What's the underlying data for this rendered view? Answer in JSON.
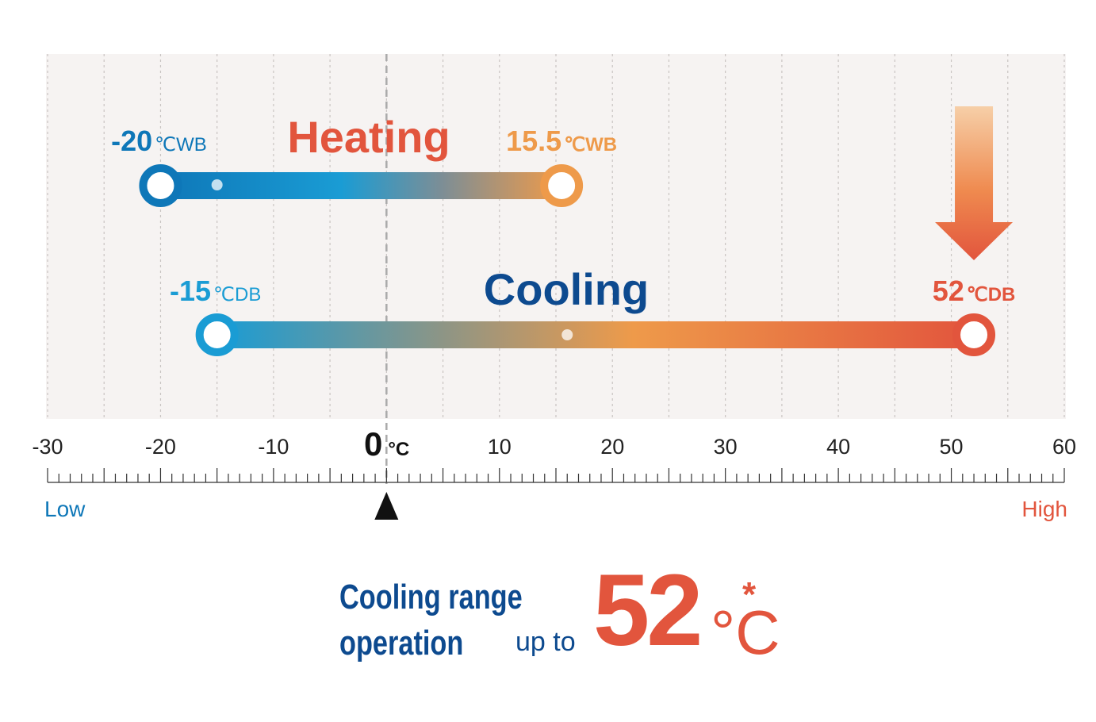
{
  "colors": {
    "cold_blue": "#0e77b8",
    "light_blue": "#1a9cd4",
    "orange": "#ee9a4a",
    "red": "#e2553d",
    "navy": "#0d4a8f",
    "plot_bg": "#f6f3f2"
  },
  "chart_data": {
    "type": "range",
    "xlim": [
      -30,
      60
    ],
    "x_ticks": [
      "-30",
      "-20",
      "-10",
      "0",
      "10",
      "20",
      "30",
      "40",
      "50",
      "60"
    ],
    "zero_unit": "°C",
    "axis_low_label": "Low",
    "axis_high_label": "High",
    "grid": true,
    "series": [
      {
        "name": "Heating",
        "min": -20,
        "max": 15.5,
        "min_label": {
          "value": "-20",
          "unit": "℃WB"
        },
        "max_label": {
          "value": "15.5",
          "unit": "℃WB"
        },
        "mid_dot": -15
      },
      {
        "name": "Cooling",
        "min": -15,
        "max": 52,
        "min_label": {
          "value": "-15",
          "unit": "℃DB"
        },
        "max_label": {
          "value": "52",
          "unit": "℃DB"
        },
        "mid_dot": 16
      }
    ]
  },
  "footer": {
    "line1": "Cooling range",
    "line2": "operation",
    "up_to": "up to",
    "value": "52",
    "unit": "°C",
    "asterisk": "*"
  }
}
